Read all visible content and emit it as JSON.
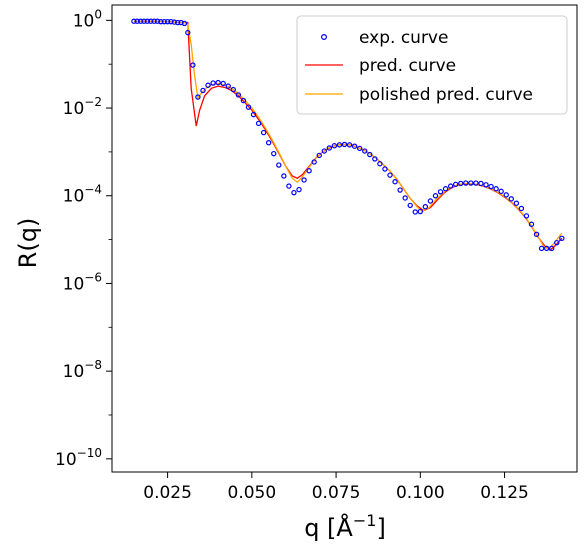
{
  "chart_data": {
    "type": "line",
    "title": "",
    "xlabel": "q [Å^-1]",
    "ylabel": "R(q)",
    "xlim": [
      0.0085,
      0.1465
    ],
    "ylim_log10": [
      -10.3,
      0.35
    ],
    "x_scale": "linear",
    "y_scale": "log",
    "grid": false,
    "legend_position": "top-right",
    "x_ticks": [
      {
        "value": 0.025,
        "label": "0.025"
      },
      {
        "value": 0.05,
        "label": "0.050"
      },
      {
        "value": 0.075,
        "label": "0.075"
      },
      {
        "value": 0.1,
        "label": "0.100"
      },
      {
        "value": 0.125,
        "label": "0.125"
      }
    ],
    "y_ticks": [
      {
        "exp": 0,
        "mantissa": "10",
        "sup": "0"
      },
      {
        "exp": -2,
        "mantissa": "10",
        "sup": "−2"
      },
      {
        "exp": -4,
        "mantissa": "10",
        "sup": "−4"
      },
      {
        "exp": -6,
        "mantissa": "10",
        "sup": "−6"
      },
      {
        "exp": -8,
        "mantissa": "10",
        "sup": "−8"
      },
      {
        "exp": -10,
        "mantissa": "10",
        "sup": "−10"
      }
    ],
    "series": [
      {
        "name": "exp. curve",
        "style": "marker",
        "color": "#0000ff",
        "points": [
          [
            0.015,
            -0.02
          ],
          [
            0.016,
            -0.02
          ],
          [
            0.017,
            -0.02
          ],
          [
            0.018,
            -0.02
          ],
          [
            0.019,
            -0.02
          ],
          [
            0.02,
            -0.02
          ],
          [
            0.021,
            -0.02
          ],
          [
            0.022,
            -0.02
          ],
          [
            0.023,
            -0.03
          ],
          [
            0.024,
            -0.03
          ],
          [
            0.025,
            -0.03
          ],
          [
            0.026,
            -0.03
          ],
          [
            0.027,
            -0.04
          ],
          [
            0.028,
            -0.05
          ],
          [
            0.029,
            -0.05
          ],
          [
            0.03,
            -0.07
          ],
          [
            0.031,
            -0.28
          ],
          [
            0.0325,
            -1.02
          ],
          [
            0.034,
            -1.75
          ],
          [
            0.0355,
            -1.6
          ],
          [
            0.037,
            -1.48
          ],
          [
            0.0385,
            -1.43
          ],
          [
            0.04,
            -1.42
          ],
          [
            0.0415,
            -1.44
          ],
          [
            0.043,
            -1.5
          ],
          [
            0.0445,
            -1.58
          ],
          [
            0.046,
            -1.7
          ],
          [
            0.0475,
            -1.83
          ],
          [
            0.049,
            -1.98
          ],
          [
            0.0505,
            -2.15
          ],
          [
            0.052,
            -2.35
          ],
          [
            0.0535,
            -2.56
          ],
          [
            0.055,
            -2.79
          ],
          [
            0.0565,
            -3.04
          ],
          [
            0.058,
            -3.3
          ],
          [
            0.0595,
            -3.55
          ],
          [
            0.061,
            -3.78
          ],
          [
            0.0625,
            -3.93
          ],
          [
            0.064,
            -3.86
          ],
          [
            0.0655,
            -3.64
          ],
          [
            0.067,
            -3.43
          ],
          [
            0.0685,
            -3.23
          ],
          [
            0.07,
            -3.08
          ],
          [
            0.0715,
            -2.98
          ],
          [
            0.073,
            -2.91
          ],
          [
            0.0745,
            -2.86
          ],
          [
            0.076,
            -2.84
          ],
          [
            0.0775,
            -2.83
          ],
          [
            0.079,
            -2.84
          ],
          [
            0.0805,
            -2.87
          ],
          [
            0.082,
            -2.92
          ],
          [
            0.0835,
            -2.98
          ],
          [
            0.085,
            -3.06
          ],
          [
            0.0865,
            -3.16
          ],
          [
            0.088,
            -3.27
          ],
          [
            0.0895,
            -3.39
          ],
          [
            0.091,
            -3.53
          ],
          [
            0.0925,
            -3.68
          ],
          [
            0.094,
            -3.87
          ],
          [
            0.0955,
            -4.05
          ],
          [
            0.097,
            -4.22
          ],
          [
            0.0985,
            -4.37
          ],
          [
            0.1,
            -4.36
          ],
          [
            0.1015,
            -4.25
          ],
          [
            0.103,
            -4.12
          ],
          [
            0.1045,
            -4.0
          ],
          [
            0.106,
            -3.91
          ],
          [
            0.1075,
            -3.84
          ],
          [
            0.109,
            -3.78
          ],
          [
            0.1105,
            -3.74
          ],
          [
            0.112,
            -3.72
          ],
          [
            0.1135,
            -3.71
          ],
          [
            0.115,
            -3.71
          ],
          [
            0.1165,
            -3.71
          ],
          [
            0.118,
            -3.72
          ],
          [
            0.1195,
            -3.75
          ],
          [
            0.121,
            -3.79
          ],
          [
            0.1225,
            -3.84
          ],
          [
            0.124,
            -3.9
          ],
          [
            0.1255,
            -3.98
          ],
          [
            0.127,
            -4.07
          ],
          [
            0.1285,
            -4.17
          ],
          [
            0.13,
            -4.29
          ],
          [
            0.1315,
            -4.46
          ],
          [
            0.133,
            -4.65
          ],
          [
            0.1345,
            -4.88
          ],
          [
            0.136,
            -5.2
          ],
          [
            0.1375,
            -5.2
          ],
          [
            0.139,
            -5.2
          ],
          [
            0.1405,
            -5.07
          ],
          [
            0.142,
            -4.97
          ]
        ]
      },
      {
        "name": "pred. curve",
        "style": "line",
        "color": "#ff0000",
        "points": [
          [
            0.015,
            -0.02
          ],
          [
            0.02,
            -0.02
          ],
          [
            0.025,
            -0.03
          ],
          [
            0.028,
            -0.04
          ],
          [
            0.03,
            -0.05
          ],
          [
            0.031,
            -0.05
          ],
          [
            0.032,
            -1.55
          ],
          [
            0.0335,
            -2.41
          ],
          [
            0.0345,
            -2.05
          ],
          [
            0.036,
            -1.72
          ],
          [
            0.038,
            -1.55
          ],
          [
            0.04,
            -1.5
          ],
          [
            0.042,
            -1.53
          ],
          [
            0.044,
            -1.6
          ],
          [
            0.046,
            -1.72
          ],
          [
            0.048,
            -1.88
          ],
          [
            0.05,
            -2.05
          ],
          [
            0.052,
            -2.26
          ],
          [
            0.054,
            -2.49
          ],
          [
            0.056,
            -2.75
          ],
          [
            0.058,
            -3.03
          ],
          [
            0.06,
            -3.32
          ],
          [
            0.062,
            -3.55
          ],
          [
            0.0635,
            -3.6
          ],
          [
            0.065,
            -3.52
          ],
          [
            0.067,
            -3.33
          ],
          [
            0.069,
            -3.14
          ],
          [
            0.071,
            -3.0
          ],
          [
            0.073,
            -2.91
          ],
          [
            0.075,
            -2.85
          ],
          [
            0.077,
            -2.83
          ],
          [
            0.079,
            -2.84
          ],
          [
            0.081,
            -2.88
          ],
          [
            0.083,
            -2.95
          ],
          [
            0.085,
            -3.04
          ],
          [
            0.087,
            -3.15
          ],
          [
            0.089,
            -3.29
          ],
          [
            0.091,
            -3.44
          ],
          [
            0.093,
            -3.62
          ],
          [
            0.095,
            -3.84
          ],
          [
            0.097,
            -4.06
          ],
          [
            0.099,
            -4.23
          ],
          [
            0.101,
            -4.34
          ],
          [
            0.103,
            -4.27
          ],
          [
            0.105,
            -4.1
          ],
          [
            0.107,
            -3.94
          ],
          [
            0.109,
            -3.83
          ],
          [
            0.111,
            -3.76
          ],
          [
            0.113,
            -3.73
          ],
          [
            0.115,
            -3.73
          ],
          [
            0.117,
            -3.75
          ],
          [
            0.119,
            -3.79
          ],
          [
            0.121,
            -3.85
          ],
          [
            0.123,
            -3.93
          ],
          [
            0.125,
            -4.03
          ],
          [
            0.127,
            -4.15
          ],
          [
            0.129,
            -4.3
          ],
          [
            0.131,
            -4.48
          ],
          [
            0.133,
            -4.7
          ],
          [
            0.135,
            -4.95
          ],
          [
            0.137,
            -5.15
          ],
          [
            0.1385,
            -5.24
          ],
          [
            0.14,
            -5.14
          ],
          [
            0.142,
            -4.97
          ]
        ]
      },
      {
        "name": "polished pred. curve",
        "style": "line",
        "color": "#ffa500",
        "points": [
          [
            0.015,
            -0.02
          ],
          [
            0.02,
            -0.02
          ],
          [
            0.025,
            -0.03
          ],
          [
            0.028,
            -0.04
          ],
          [
            0.03,
            -0.05
          ],
          [
            0.031,
            -0.1
          ],
          [
            0.032,
            -0.55
          ],
          [
            0.033,
            -1.25
          ],
          [
            0.034,
            -1.78
          ],
          [
            0.035,
            -1.66
          ],
          [
            0.0365,
            -1.54
          ],
          [
            0.038,
            -1.47
          ],
          [
            0.04,
            -1.44
          ],
          [
            0.042,
            -1.47
          ],
          [
            0.044,
            -1.55
          ],
          [
            0.046,
            -1.67
          ],
          [
            0.048,
            -1.82
          ],
          [
            0.05,
            -2.0
          ],
          [
            0.052,
            -2.21
          ],
          [
            0.054,
            -2.45
          ],
          [
            0.056,
            -2.72
          ],
          [
            0.058,
            -3.01
          ],
          [
            0.06,
            -3.32
          ],
          [
            0.062,
            -3.6
          ],
          [
            0.0635,
            -3.69
          ],
          [
            0.065,
            -3.57
          ],
          [
            0.067,
            -3.35
          ],
          [
            0.069,
            -3.15
          ],
          [
            0.071,
            -3.0
          ],
          [
            0.073,
            -2.9
          ],
          [
            0.075,
            -2.85
          ],
          [
            0.077,
            -2.83
          ],
          [
            0.079,
            -2.84
          ],
          [
            0.081,
            -2.88
          ],
          [
            0.083,
            -2.95
          ],
          [
            0.085,
            -3.04
          ],
          [
            0.087,
            -3.15
          ],
          [
            0.089,
            -3.29
          ],
          [
            0.091,
            -3.44
          ],
          [
            0.093,
            -3.62
          ],
          [
            0.095,
            -3.84
          ],
          [
            0.097,
            -4.06
          ],
          [
            0.099,
            -4.25
          ],
          [
            0.1005,
            -4.35
          ],
          [
            0.1025,
            -4.28
          ],
          [
            0.1045,
            -4.1
          ],
          [
            0.107,
            -3.92
          ],
          [
            0.109,
            -3.81
          ],
          [
            0.111,
            -3.75
          ],
          [
            0.113,
            -3.72
          ],
          [
            0.115,
            -3.72
          ],
          [
            0.117,
            -3.74
          ],
          [
            0.119,
            -3.78
          ],
          [
            0.121,
            -3.84
          ],
          [
            0.123,
            -3.92
          ],
          [
            0.125,
            -4.02
          ],
          [
            0.127,
            -4.14
          ],
          [
            0.129,
            -4.29
          ],
          [
            0.131,
            -4.47
          ],
          [
            0.133,
            -4.69
          ],
          [
            0.135,
            -4.94
          ],
          [
            0.1365,
            -5.14
          ],
          [
            0.138,
            -5.22
          ],
          [
            0.1395,
            -5.1
          ],
          [
            0.142,
            -4.85
          ]
        ]
      }
    ]
  }
}
